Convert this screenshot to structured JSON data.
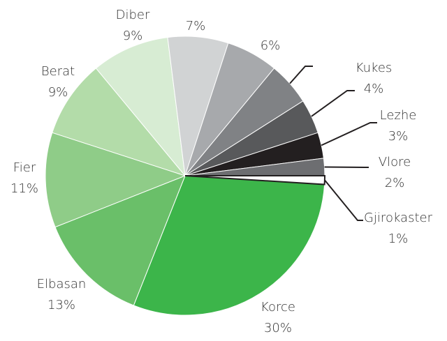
{
  "chart_data": {
    "type": "pie",
    "categories": [
      "Korce",
      "Elbasan",
      "Fier",
      "Berat",
      "Diber",
      null,
      null,
      null,
      "Kukes",
      "Lezhe",
      "Vlore",
      "Gjirokaster"
    ],
    "values": [
      30,
      13,
      11,
      9,
      9,
      7,
      6,
      5,
      4,
      3,
      2,
      1
    ],
    "value_labels": [
      "30%",
      "13%",
      "11%",
      "9%",
      "9%",
      "7%",
      "6%",
      null,
      "4%",
      "3%",
      "2%",
      "1%"
    ],
    "colors": [
      "#3cb54a",
      "#6abf69",
      "#8fcc88",
      "#b3dca9",
      "#d7ecd3",
      "#d1d3d4",
      "#a7a9ac",
      "#808285",
      "#58595b",
      "#231f20",
      "#6d6e71",
      "#ffffff"
    ]
  }
}
